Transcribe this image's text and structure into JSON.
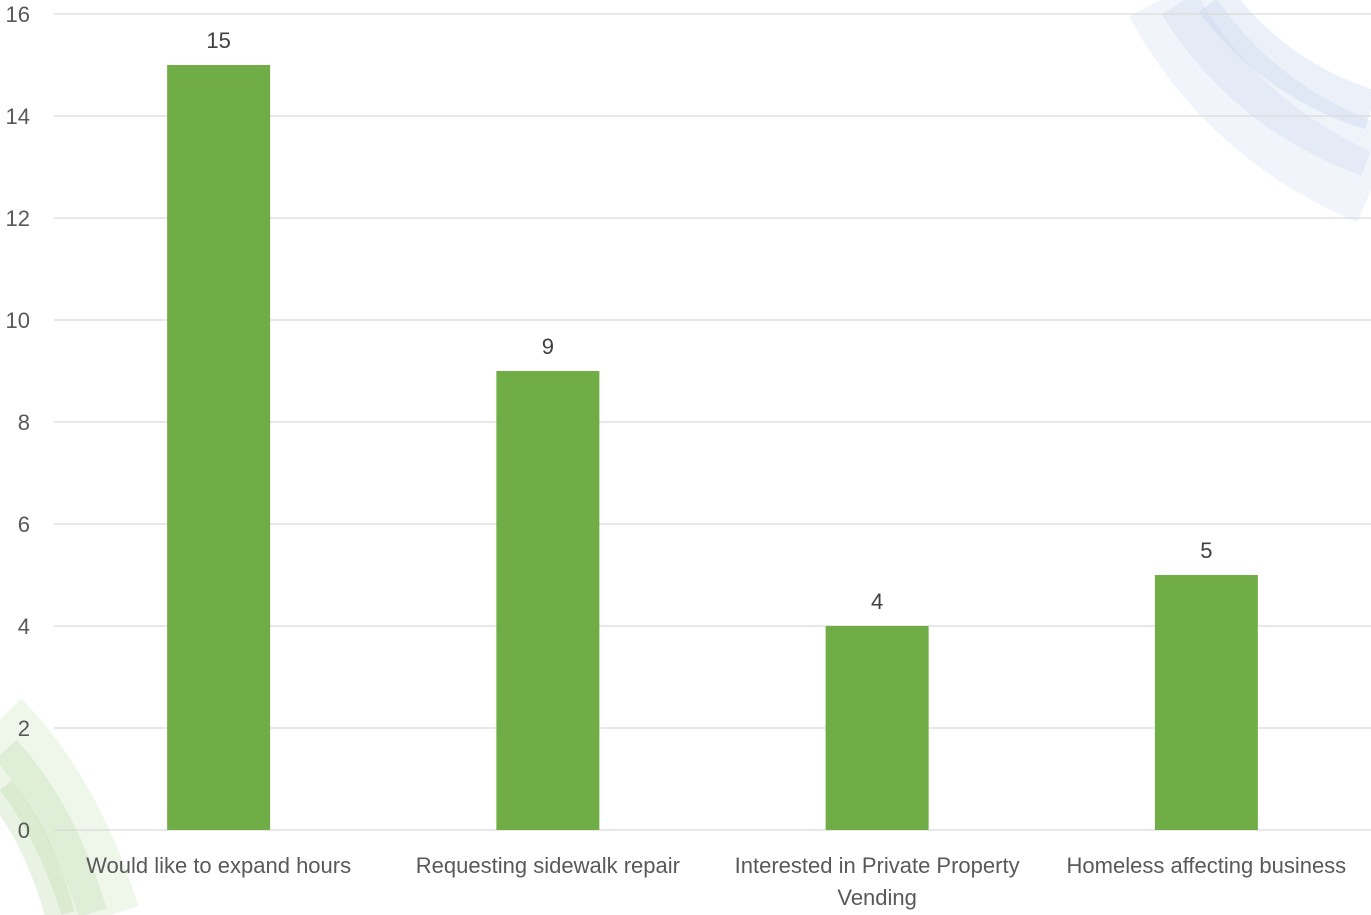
{
  "chart_data": {
    "type": "bar",
    "categories": [
      [
        "Would like to expand hours"
      ],
      [
        "Requesting sidewalk repair"
      ],
      [
        "Interested in Private Property",
        "Vending"
      ],
      [
        "Homeless affecting business"
      ]
    ],
    "values": [
      15,
      9,
      4,
      5
    ],
    "title": "",
    "xlabel": "",
    "ylabel": "",
    "ylim": [
      0,
      16
    ],
    "yticks": [
      0,
      2,
      4,
      6,
      8,
      10,
      12,
      14,
      16
    ],
    "grid": true,
    "legend": "none",
    "data_labels": true,
    "bar_color": "#70ad47",
    "decoration_colors": {
      "top_right_arcs": "#b4c7e7",
      "bottom_left_arcs": "#a9d18e"
    }
  }
}
